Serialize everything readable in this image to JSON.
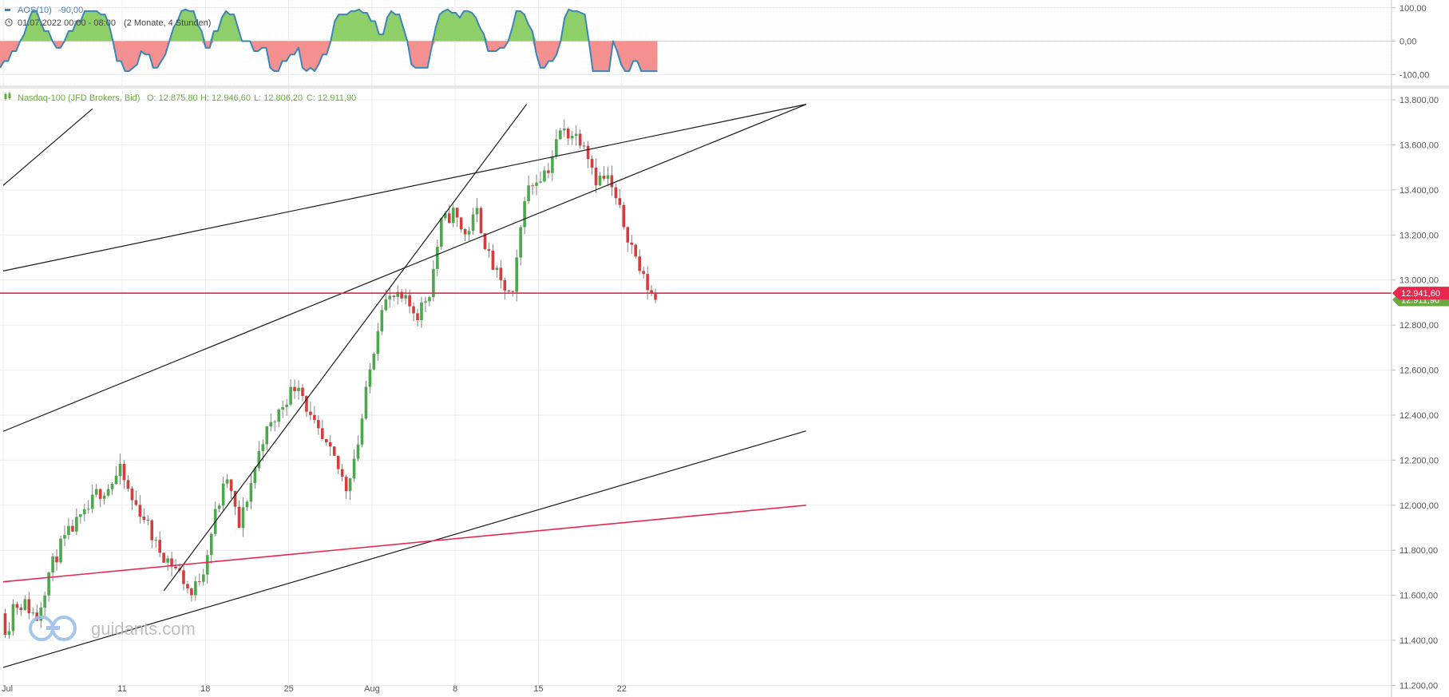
{
  "oscillator": {
    "legend": "AOS(10)",
    "legend_value": "-90,00",
    "date_range": "01.07.2022 00:00 - 08:00",
    "period_label": "(2 Monate, 4 Stunden)",
    "ticks": [
      "100,00",
      "0,00",
      "-100,00"
    ],
    "tick_values": [
      100,
      0,
      -100
    ],
    "color_positive": "#8fcf6a",
    "color_negative": "#f49090",
    "line_color": "#3a86b8",
    "values": [
      -80,
      -60,
      -60,
      -30,
      -30,
      0,
      20,
      60,
      90,
      90,
      60,
      30,
      30,
      0,
      -20,
      -20,
      0,
      30,
      30,
      60,
      60,
      90,
      90,
      90,
      90,
      80,
      80,
      50,
      0,
      -60,
      -60,
      -90,
      -90,
      -80,
      -70,
      -30,
      -40,
      -40,
      -80,
      -80,
      -60,
      -40,
      0,
      40,
      60,
      90,
      95,
      90,
      90,
      50,
      30,
      -20,
      -20,
      30,
      30,
      70,
      90,
      80,
      80,
      40,
      0,
      0,
      0,
      -30,
      -30,
      -20,
      -20,
      -80,
      -90,
      -90,
      -60,
      -60,
      -40,
      -40,
      -20,
      -80,
      -90,
      -80,
      -90,
      -70,
      -40,
      -40,
      0,
      60,
      80,
      80,
      80,
      90,
      90,
      95,
      85,
      85,
      60,
      60,
      20,
      20,
      70,
      90,
      80,
      80,
      40,
      0,
      -70,
      -80,
      -80,
      -80,
      -80,
      -20,
      40,
      80,
      90,
      95,
      85,
      85,
      70,
      90,
      90,
      85,
      70,
      40,
      20,
      -30,
      -30,
      -30,
      -20,
      -20,
      0,
      40,
      90,
      90,
      80,
      50,
      30,
      -40,
      -80,
      -80,
      -60,
      -60,
      -40,
      0,
      70,
      95,
      90,
      90,
      85,
      80,
      0,
      -90,
      -90,
      -90,
      -90,
      -90,
      0,
      -30,
      -70,
      -90,
      -90,
      -60,
      -60,
      -90,
      -90,
      -90,
      -90,
      -90
    ]
  },
  "chart_data": {
    "type": "candlestick",
    "instrument": "Nasdaq-100 (JFD Brokers, Bid)",
    "ohlc_labels": {
      "open": "O: 12.875,80",
      "high": "H: 12.946,60",
      "low": "L: 12.806,20",
      "close": "C: 12.911,90"
    },
    "y_ticks": [
      "13.800,00",
      "13.600,00",
      "13.400,00",
      "13.200,00",
      "13.000,00",
      "12.800,00",
      "12.600,00",
      "12.400,00",
      "12.200,00",
      "12.000,00",
      "11.800,00",
      "11.600,00",
      "11.400,00",
      "11.200,00"
    ],
    "y_tick_values": [
      13800,
      13600,
      13400,
      13200,
      13000,
      12800,
      12600,
      12400,
      12200,
      12000,
      11800,
      11600,
      11400,
      11200
    ],
    "ylim": [
      11200,
      13800
    ],
    "x_ticks": [
      "Jul",
      "11",
      "18",
      "25",
      "Aug",
      "8",
      "15",
      "22"
    ],
    "x_tick_days": [
      0,
      10,
      17,
      24,
      31,
      38,
      45,
      52
    ],
    "horizontal_line": {
      "value": 12941.6,
      "label": "12.941,60",
      "color": "#e8264e"
    },
    "last_price": {
      "value": 12911.9,
      "label": "12.911,90",
      "color": "#6aa93f"
    },
    "up_color": "#4ca84c",
    "down_color": "#d63c3c",
    "candles_per_day": 3,
    "start_open": 11520,
    "close_path": [
      [
        0,
        11520
      ],
      [
        0.5,
        11430
      ],
      [
        1,
        11560
      ],
      [
        2,
        11560
      ],
      [
        3,
        11500
      ],
      [
        4,
        11700
      ],
      [
        5,
        11820
      ],
      [
        6,
        11900
      ],
      [
        7,
        11950
      ],
      [
        8,
        12050
      ],
      [
        9,
        12080
      ],
      [
        10,
        12150
      ],
      [
        11,
        12020
      ],
      [
        12,
        11950
      ],
      [
        13,
        11820
      ],
      [
        14,
        11760
      ],
      [
        15,
        11700
      ],
      [
        16,
        11600
      ],
      [
        17,
        11720
      ],
      [
        18,
        11960
      ],
      [
        19,
        12120
      ],
      [
        20,
        11900
      ],
      [
        21,
        12100
      ],
      [
        22,
        12300
      ],
      [
        23,
        12380
      ],
      [
        24,
        12480
      ],
      [
        25,
        12550
      ],
      [
        26,
        12380
      ],
      [
        27,
        12280
      ],
      [
        28,
        12200
      ],
      [
        29,
        12080
      ],
      [
        30,
        12280
      ],
      [
        31,
        12600
      ],
      [
        32,
        12900
      ],
      [
        33,
        12920
      ],
      [
        34,
        12900
      ],
      [
        35,
        12850
      ],
      [
        36,
        12950
      ],
      [
        37,
        13250
      ],
      [
        38,
        13300
      ],
      [
        39,
        13200
      ],
      [
        40,
        13300
      ],
      [
        41,
        13100
      ],
      [
        42,
        12980
      ],
      [
        43,
        12920
      ],
      [
        44,
        13380
      ],
      [
        45,
        13450
      ],
      [
        46,
        13500
      ],
      [
        47,
        13660
      ],
      [
        48,
        13650
      ],
      [
        49,
        13620
      ],
      [
        50,
        13450
      ],
      [
        51,
        13450
      ],
      [
        52,
        13300
      ],
      [
        53,
        13150
      ],
      [
        54,
        13000
      ],
      [
        55,
        12911.9
      ]
    ],
    "trend_lines_black": [
      [
        [
          0,
          13040
        ],
        [
          67.5,
          13780
        ]
      ],
      [
        [
          0,
          12328
        ],
        [
          67.5,
          13780
        ]
      ],
      [
        [
          0,
          11280
        ],
        [
          67.5,
          12330
        ]
      ],
      [
        [
          0,
          13420
        ],
        [
          7.5,
          13760
        ]
      ],
      [
        [
          13.5,
          11620
        ],
        [
          44,
          13780
        ]
      ]
    ],
    "trend_lines_red": [
      [
        [
          0,
          11660
        ],
        [
          67.5,
          12000
        ]
      ]
    ]
  },
  "watermark": {
    "brand": "guidants.com"
  }
}
